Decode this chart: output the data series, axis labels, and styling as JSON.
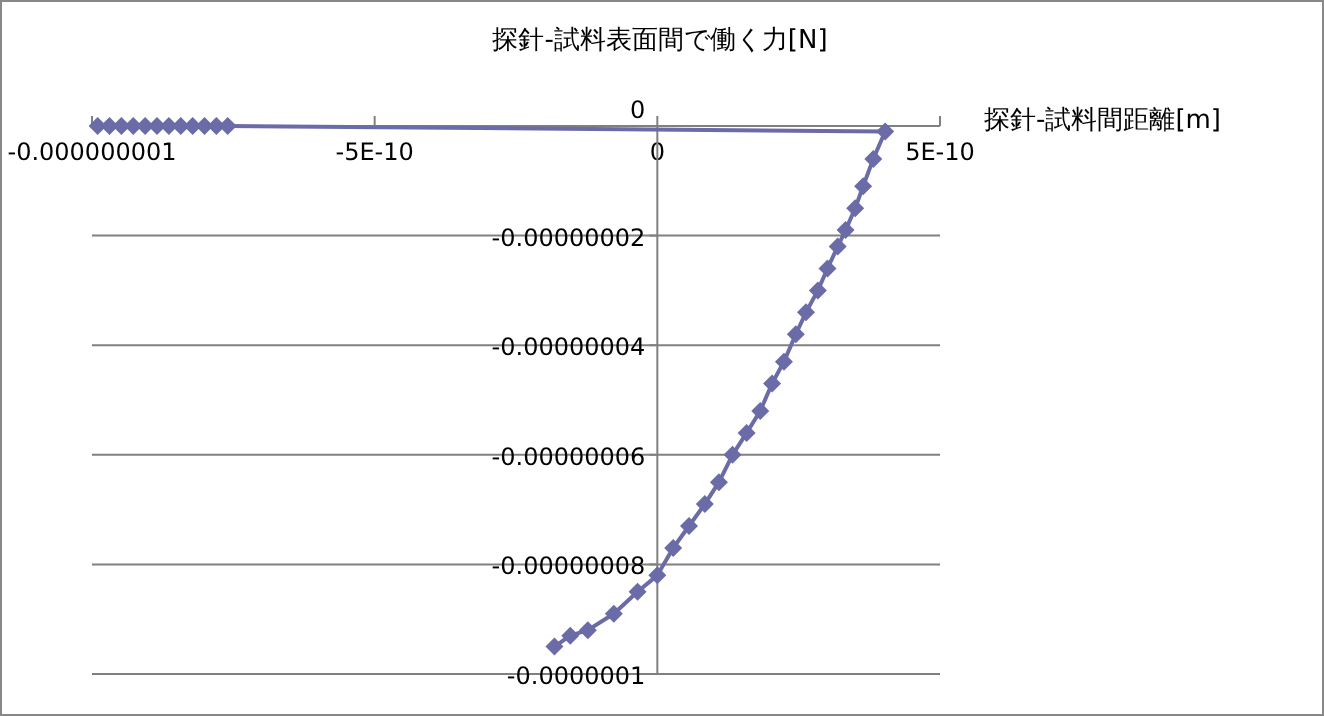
{
  "chart_data": {
    "type": "line",
    "title": "探針-試料表面間で働く力[N]",
    "xlabel": "探針-試料間距離[m]",
    "marker": "diamond",
    "line_style": "solid",
    "grid": "y",
    "xlim": [
      -1e-09,
      5e-10
    ],
    "ylim": [
      -1e-07,
      0
    ],
    "xticks": [
      {
        "value": -1e-09,
        "label": "-0.000000001"
      },
      {
        "value": -5e-10,
        "label": "-5E-10"
      },
      0,
      {
        "value": 5e-10,
        "label": "5E-10"
      }
    ],
    "yticks": [
      0,
      {
        "value": -2e-08,
        "label": "-0.00000002"
      },
      {
        "value": -4e-08,
        "label": "-0.00000004"
      },
      {
        "value": -6e-08,
        "label": "-0.00000006"
      },
      {
        "value": -8e-08,
        "label": "-0.00000008"
      },
      {
        "value": -1e-07,
        "label": "-0.0000001"
      }
    ],
    "series": [
      {
        "color": "#6b6ba8",
        "x": [
          -9.9e-10,
          -9.69e-10,
          -9.48e-10,
          -9.27e-10,
          -9.06e-10,
          -8.85e-10,
          -8.64e-10,
          -8.43e-10,
          -8.22e-10,
          -8.01e-10,
          -7.8e-10,
          -7.6e-10,
          4.03e-10,
          3.82e-10,
          3.64e-10,
          3.5e-10,
          3.33e-10,
          3.19e-10,
          3.01e-10,
          2.84e-10,
          2.63e-10,
          2.45e-10,
          2.24e-10,
          2.03e-10,
          1.82e-10,
          1.58e-10,
          1.33e-10,
          1.09e-10,
          8.4e-11,
          5.6e-11,
          2.8e-11,
          0,
          -3.5e-11,
          -7.7e-11,
          -1.23e-10,
          -1.54e-10,
          -1.82e-10
        ],
        "values": [
          0,
          0,
          0,
          0,
          0,
          0,
          0,
          0,
          0,
          0,
          0,
          0,
          -1e-09,
          -6e-09,
          -1.1e-08,
          -1.5e-08,
          -1.9e-08,
          -2.2e-08,
          -2.6e-08,
          -3e-08,
          -3.4e-08,
          -3.8e-08,
          -4.3e-08,
          -4.7e-08,
          -5.2e-08,
          -5.6e-08,
          -6e-08,
          -6.5e-08,
          -6.9e-08,
          -7.3e-08,
          -7.7e-08,
          -8.2e-08,
          -8.5e-08,
          -8.9e-08,
          -9.2e-08,
          -9.3e-08,
          -9.5e-08
        ]
      }
    ]
  }
}
